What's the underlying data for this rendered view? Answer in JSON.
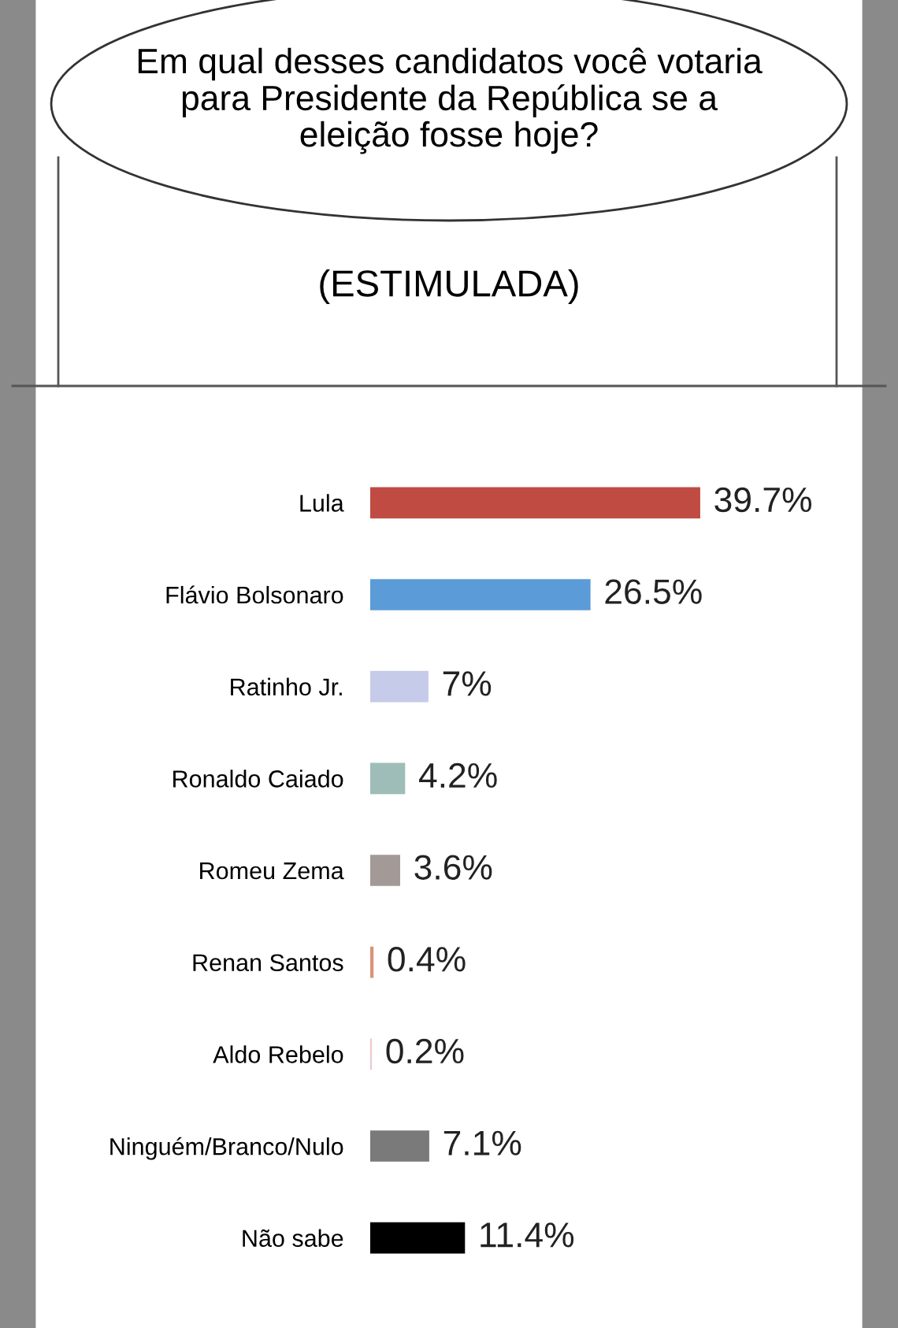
{
  "chart_data": {
    "type": "bar",
    "orientation": "horizontal",
    "title": "Em qual desses candidatos você votaria para Presidente da República se a eleição fosse hoje?",
    "subtitle": "(ESTIMULADA)",
    "categories": [
      "Lula",
      "Flávio Bolsonaro",
      "Ratinho Jr.",
      "Ronaldo Caiado",
      "Romeu Zema",
      "Renan Santos",
      "Aldo Rebelo",
      "Ninguém/Branco/Nulo",
      "Não sabe"
    ],
    "values": [
      39.7,
      26.5,
      7,
      4.2,
      3.6,
      0.4,
      0.2,
      7.1,
      11.4
    ],
    "colors": [
      "#bf4b43",
      "#5b9bd8",
      "#c5cbe8",
      "#9fbdb8",
      "#a39996",
      "#d9927a",
      "#ecc8cc",
      "#7a7a7a",
      "#000000"
    ],
    "value_labels": [
      "39.7%",
      "26.5%",
      "7%",
      "4.2%",
      "3.6%",
      "0.4%",
      "0.2%",
      "7.1%",
      "11.4%"
    ],
    "grid": false,
    "legend": false
  }
}
